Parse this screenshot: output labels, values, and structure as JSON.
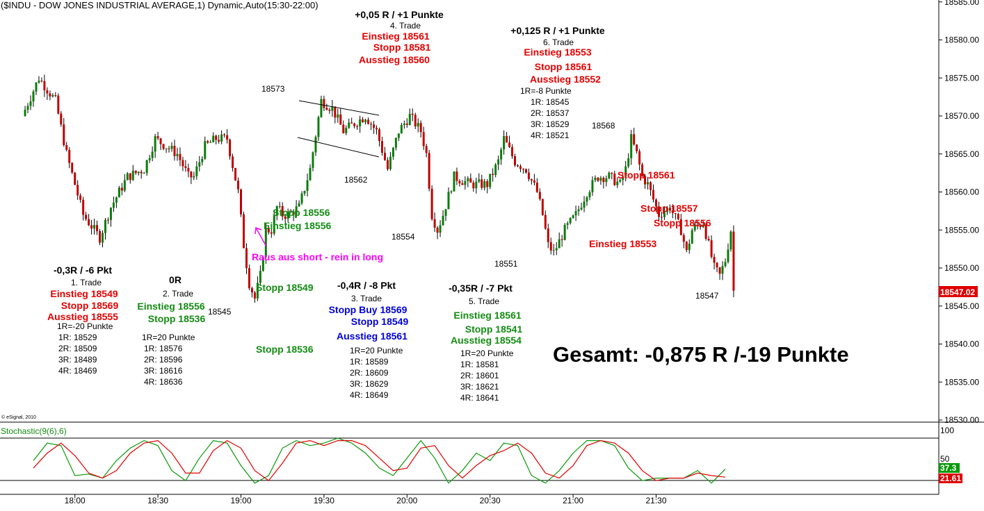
{
  "header": {
    "title": "($INDU - DOW JONES INDUSTRIAL AVERAGE,1) Dynamic,Auto(15:30-22:00)",
    "copyright": "© eSignal, 2010"
  },
  "colors": {
    "up_candle": "#0a7d0a",
    "down_candle": "#c00000",
    "green_text": "#138c13",
    "red_text": "#e60000",
    "blue_text": "#0000d8",
    "magenta": "#ff00ff",
    "price_box": "#e00000",
    "stoch_k": "#0a9a0a",
    "stoch_d": "#e00000"
  },
  "chart_data": [
    {
      "type": "candlestick",
      "instrument": "($INDU - DOW JONES INDUSTRIAL AVERAGE,1)",
      "y_ticks": [
        "18585.00",
        "18580.00",
        "18575.00",
        "18570.00",
        "18565.00",
        "18560.00",
        "18555.00",
        "18550.00",
        "18545.00",
        "18540.00",
        "18535.00",
        "18530.00"
      ],
      "ylim": [
        18530,
        18585
      ],
      "x_ticks": [
        "18:00",
        "18:30",
        "19:00",
        "19:30",
        "20:00",
        "20:30",
        "21:00",
        "21:30"
      ],
      "last_price": "18547.02",
      "path": [
        {
          "t": -4,
          "v": 18570
        },
        {
          "t": 2,
          "v": 18575
        },
        {
          "t": 8,
          "v": 18572
        },
        {
          "t": 12,
          "v": 18565
        },
        {
          "t": 18,
          "v": 18557
        },
        {
          "t": 24,
          "v": 18554
        },
        {
          "t": 28,
          "v": 18558
        },
        {
          "t": 34,
          "v": 18562
        },
        {
          "t": 40,
          "v": 18563
        },
        {
          "t": 44,
          "v": 18567
        },
        {
          "t": 48,
          "v": 18566
        },
        {
          "t": 52,
          "v": 18565
        },
        {
          "t": 56,
          "v": 18562
        },
        {
          "t": 58,
          "v": 18562
        },
        {
          "t": 62,
          "v": 18566
        },
        {
          "t": 66,
          "v": 18567
        },
        {
          "t": 70,
          "v": 18567
        },
        {
          "t": 74,
          "v": 18560
        },
        {
          "t": 76,
          "v": 18553
        },
        {
          "t": 78,
          "v": 18548
        },
        {
          "t": 80,
          "v": 18546
        },
        {
          "t": 82,
          "v": 18549
        },
        {
          "t": 84,
          "v": 18555
        },
        {
          "t": 86,
          "v": 18555
        },
        {
          "t": 88,
          "v": 18558
        },
        {
          "t": 90,
          "v": 18557
        },
        {
          "t": 92,
          "v": 18557
        },
        {
          "t": 96,
          "v": 18558
        },
        {
          "t": 100,
          "v": 18563
        },
        {
          "t": 104,
          "v": 18572
        },
        {
          "t": 108,
          "v": 18571
        },
        {
          "t": 112,
          "v": 18568
        },
        {
          "t": 116,
          "v": 18569
        },
        {
          "t": 120,
          "v": 18570
        },
        {
          "t": 124,
          "v": 18568
        },
        {
          "t": 128,
          "v": 18563
        },
        {
          "t": 132,
          "v": 18568
        },
        {
          "t": 136,
          "v": 18570
        },
        {
          "t": 140,
          "v": 18568
        },
        {
          "t": 142,
          "v": 18565
        },
        {
          "t": 144,
          "v": 18557
        },
        {
          "t": 146,
          "v": 18555
        },
        {
          "t": 148,
          "v": 18557
        },
        {
          "t": 152,
          "v": 18562
        },
        {
          "t": 158,
          "v": 18561
        },
        {
          "t": 164,
          "v": 18561
        },
        {
          "t": 168,
          "v": 18564
        },
        {
          "t": 170,
          "v": 18567
        },
        {
          "t": 174,
          "v": 18564
        },
        {
          "t": 178,
          "v": 18563
        },
        {
          "t": 182,
          "v": 18560
        },
        {
          "t": 184,
          "v": 18557
        },
        {
          "t": 186,
          "v": 18553
        },
        {
          "t": 188,
          "v": 18552
        },
        {
          "t": 192,
          "v": 18555
        },
        {
          "t": 196,
          "v": 18557
        },
        {
          "t": 200,
          "v": 18560
        },
        {
          "t": 204,
          "v": 18562
        },
        {
          "t": 208,
          "v": 18562
        },
        {
          "t": 212,
          "v": 18561
        },
        {
          "t": 214,
          "v": 18563
        },
        {
          "t": 216,
          "v": 18567
        },
        {
          "t": 218,
          "v": 18565
        },
        {
          "t": 220,
          "v": 18562
        },
        {
          "t": 222,
          "v": 18561
        },
        {
          "t": 224,
          "v": 18559
        },
        {
          "t": 226,
          "v": 18557
        },
        {
          "t": 230,
          "v": 18558
        },
        {
          "t": 234,
          "v": 18555
        },
        {
          "t": 236,
          "v": 18552
        },
        {
          "t": 238,
          "v": 18555
        },
        {
          "t": 242,
          "v": 18556
        },
        {
          "t": 244,
          "v": 18553
        },
        {
          "t": 246,
          "v": 18550
        },
        {
          "t": 248,
          "v": 18549
        },
        {
          "t": 250,
          "v": 18551
        },
        {
          "t": 252,
          "v": 18555
        },
        {
          "t": 253,
          "v": 18547
        }
      ]
    },
    {
      "type": "line",
      "title": "Stochastic(9(6),6)",
      "y_ticks": [
        "100",
        "50"
      ],
      "k_value": "37.3",
      "d_value": "21.61",
      "series": [
        {
          "name": "%K",
          "x": [
            0,
            5,
            10,
            15,
            20,
            25,
            30,
            35,
            40,
            45,
            50,
            55,
            60,
            65,
            70,
            75,
            80,
            85,
            90,
            95,
            100,
            105,
            110,
            115,
            120,
            125,
            130,
            135,
            140,
            145,
            150,
            155,
            160,
            165,
            170,
            175,
            180,
            185,
            190,
            195,
            200,
            205,
            210,
            215,
            220,
            225,
            230,
            235,
            240,
            245,
            250
          ],
          "values": [
            55,
            90,
            85,
            25,
            28,
            20,
            55,
            80,
            95,
            85,
            35,
            15,
            60,
            95,
            90,
            45,
            10,
            25,
            80,
            95,
            85,
            90,
            100,
            90,
            70,
            40,
            25,
            60,
            95,
            60,
            10,
            35,
            70,
            55,
            90,
            85,
            25,
            10,
            35,
            70,
            95,
            95,
            85,
            40,
            15,
            20,
            20,
            20,
            35,
            10,
            38
          ]
        },
        {
          "name": "%D",
          "x": [
            0,
            5,
            10,
            15,
            20,
            25,
            30,
            35,
            40,
            45,
            50,
            55,
            60,
            65,
            70,
            75,
            80,
            85,
            90,
            95,
            100,
            105,
            110,
            115,
            120,
            125,
            130,
            135,
            140,
            145,
            150,
            155,
            160,
            165,
            170,
            175,
            180,
            185,
            190,
            195,
            200,
            205,
            210,
            215,
            220,
            225,
            230,
            235,
            240,
            245,
            250
          ],
          "values": [
            40,
            70,
            90,
            65,
            30,
            20,
            35,
            70,
            90,
            95,
            70,
            30,
            30,
            75,
            95,
            80,
            35,
            15,
            50,
            90,
            95,
            85,
            95,
            95,
            85,
            60,
            35,
            40,
            80,
            85,
            45,
            20,
            45,
            65,
            75,
            90,
            70,
            30,
            20,
            45,
            85,
            95,
            90,
            70,
            35,
            15,
            20,
            20,
            30,
            25,
            22
          ]
        }
      ]
    }
  ],
  "labels": {
    "t1_title": "-0,3R / -6 Pkt",
    "t1_name": "1. Trade",
    "t1_entry": "Einstieg 18549",
    "t1_stop": "Stopp 18569",
    "t1_exit": "Ausstieg 18555",
    "t1_r0": "1R=-20 Punkte",
    "t1_r1": "1R: 18529",
    "t1_r2": "2R: 18509",
    "t1_r3": "3R: 18489",
    "t1_r4": "4R: 18469",
    "t2_title": "0R",
    "t2_name": "2. Trade",
    "t2_entry": "Einstieg 18556",
    "t2_stop": "Stopp 18536",
    "t2_r0": "1R=20 Punkte",
    "t2_r1": "1R: 18576",
    "t2_r2": "2R: 18596",
    "t2_r3": "3R: 18616",
    "t2_r4": "4R: 18636",
    "p18545": "18545",
    "p18573": "18573",
    "mid_stop1": "Stopp 18556",
    "mid_entry": "Einstieg 18556",
    "raus": "Raus aus short - rein in long",
    "mid_stop2": "Stopp 18549",
    "mid_stop3": "Stopp 18536",
    "t3_title": "-0,4R / -8 Pkt",
    "t3_name": "3. Trade",
    "t3_stopbuy": "Stopp Buy 18569",
    "t3_stop": "Stopp 18549",
    "t3_exit": "Ausstieg 18561",
    "t3_r0": "1R=20 Punkte",
    "t3_r1": "1R: 18589",
    "t3_r2": "2R: 18609",
    "t3_r3": "3R: 18629",
    "t3_r4": "4R: 18649",
    "t4_title": "+0,05 R / +1 Punkte",
    "t4_name": "4. Trade",
    "t4_entry": "Einstieg 18561",
    "t4_stop": "Stopp 18581",
    "t4_exit": "Ausstieg 18560",
    "p18562": "18562",
    "p18554": "18554",
    "p18551": "18551",
    "t5_title": "-0,35R / -7 Pkt",
    "t5_name": "5. Trade",
    "t5_entry": "Einstieg 18561",
    "t5_stop": "Stopp 18541",
    "t5_exit": "Ausstieg 18554",
    "t5_r0": "1R=20 Punkte",
    "t5_r1": "1R: 18581",
    "t5_r2": "2R: 18601",
    "t5_r3": "3R: 18621",
    "t5_r4": "4R: 18641",
    "t6_title": "+0,125 R / +1 Punkte",
    "t6_name": "6. Trade",
    "t6_entry": "Einstieg 18553",
    "t6_stop": "Stopp 18561",
    "t6_exit": "Ausstieg 18552",
    "t6_r0": "1R=-8 Punkte",
    "t6_r1": "1R: 18545",
    "t6_r2": "2R: 18537",
    "t6_r3": "3R: 18529",
    "t6_r4": "4R: 18521",
    "p18568": "18568",
    "r_stop1": "Stopp 18561",
    "r_stop2": "Stopp 18557",
    "r_stop3": "Stopp 18556",
    "r_entry": "Einstieg 18553",
    "p18547": "18547",
    "total": "Gesamt: -0,875 R /-19 Punkte"
  }
}
